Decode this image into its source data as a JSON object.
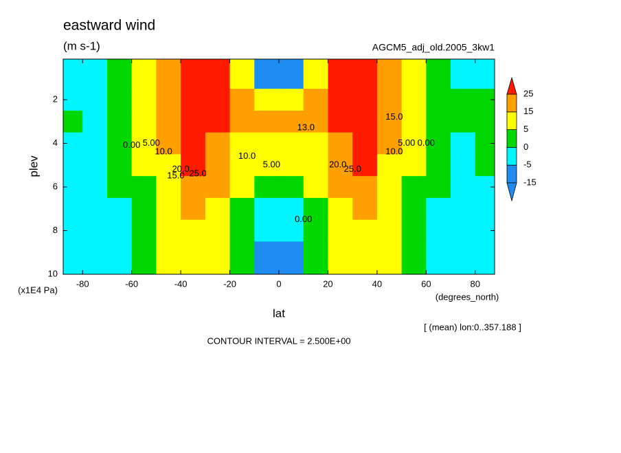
{
  "chart_data": {
    "type": "contour",
    "title": "eastward wind",
    "subtitle": "(m s-1)",
    "dataset": "AGCM5_adj_old.2005_3kw1",
    "xlabel": "lat",
    "ylabel": "plev",
    "xunits": "(degrees_north)",
    "yunits": "(x1E4 Pa)",
    "note": "[ (mean) lon:0..357.188 ]",
    "footer": "CONTOUR INTERVAL = 2.500E+00",
    "xlim": [
      -87.9,
      87.9
    ],
    "ylim": [
      10,
      0.14
    ],
    "xticks": [
      -80,
      -60,
      -40,
      -20,
      0,
      20,
      40,
      60,
      80
    ],
    "yticks": [
      2,
      4,
      6,
      8,
      10
    ],
    "x": [
      -85,
      -75,
      -65,
      -55,
      -45,
      -35,
      -25,
      -15,
      -5,
      5,
      15,
      25,
      35,
      45,
      55,
      65,
      75,
      85
    ],
    "y": [
      1,
      2,
      3,
      4,
      5,
      6,
      7,
      8,
      9,
      10
    ],
    "z": [
      [
        -2,
        -1,
        1,
        8,
        20,
        32,
        30,
        10,
        -8,
        -8,
        10,
        30,
        32,
        20,
        8,
        1,
        -1,
        -2
      ],
      [
        -2,
        -1,
        2,
        10,
        22,
        32,
        28,
        16,
        12,
        12,
        16,
        28,
        32,
        22,
        10,
        2,
        1,
        1
      ],
      [
        1,
        -1,
        2,
        9,
        20,
        30,
        27,
        18,
        16,
        16,
        18,
        27,
        30,
        20,
        9,
        2,
        1,
        2
      ],
      [
        -2,
        -1,
        2,
        8,
        17,
        28,
        24,
        14,
        12,
        12,
        14,
        24,
        28,
        17,
        8,
        2,
        -1,
        2
      ],
      [
        -2,
        -2,
        1,
        6,
        13,
        25,
        20,
        10,
        7,
        7,
        10,
        20,
        25,
        13,
        6,
        1,
        -1,
        2
      ],
      [
        -2,
        -2,
        0,
        4,
        10,
        20,
        15,
        6,
        3,
        3,
        6,
        15,
        20,
        10,
        4,
        0,
        -2,
        -1
      ],
      [
        -2,
        -3,
        -1,
        3,
        8,
        15,
        12,
        3,
        -1,
        -1,
        3,
        12,
        15,
        8,
        3,
        -1,
        -3,
        -2
      ],
      [
        -2,
        -3,
        -1,
        2,
        7,
        12,
        9,
        1,
        -3,
        -3,
        1,
        9,
        12,
        7,
        2,
        -1,
        -3,
        -2
      ],
      [
        -2,
        -3,
        -1,
        1,
        6,
        10,
        7,
        0,
        -6,
        -6,
        0,
        7,
        10,
        6,
        1,
        -1,
        -3,
        -2
      ],
      [
        -2,
        -3,
        -1,
        1,
        5,
        9,
        6,
        0,
        -6,
        -6,
        0,
        6,
        9,
        5,
        1,
        -1,
        -3,
        -2
      ]
    ],
    "levels": [
      -15,
      -5,
      0,
      5,
      15,
      25
    ],
    "colors": [
      "#1e8cf0",
      "#1e8cf0",
      "#00f5ff",
      "#00d800",
      "#ffff00",
      "#ffa000",
      "#ff1a00"
    ],
    "contour_labels": [
      {
        "text": "0.00",
        "x": -60,
        "y": 4.1
      },
      {
        "text": "5.00",
        "x": -52,
        "y": 4.0
      },
      {
        "text": "10.0",
        "x": -47,
        "y": 4.4
      },
      {
        "text": "15.0",
        "x": -42,
        "y": 5.5
      },
      {
        "text": "20.0",
        "x": -40,
        "y": 5.2
      },
      {
        "text": "25.0",
        "x": -33,
        "y": 5.4
      },
      {
        "text": "10.0",
        "x": -13,
        "y": 4.6
      },
      {
        "text": "5.00",
        "x": -3,
        "y": 5.0
      },
      {
        "text": "13.0",
        "x": 11,
        "y": 3.3
      },
      {
        "text": "0.00",
        "x": 10,
        "y": 7.5
      },
      {
        "text": "20.0",
        "x": 24,
        "y": 5.0
      },
      {
        "text": "25.0",
        "x": 30,
        "y": 5.2
      },
      {
        "text": "10.0",
        "x": 47,
        "y": 4.4
      },
      {
        "text": "5.00",
        "x": 52,
        "y": 4.0
      },
      {
        "text": "0.00",
        "x": 60,
        "y": 4.0
      },
      {
        "text": "15.0",
        "x": 47,
        "y": 2.8
      }
    ]
  }
}
